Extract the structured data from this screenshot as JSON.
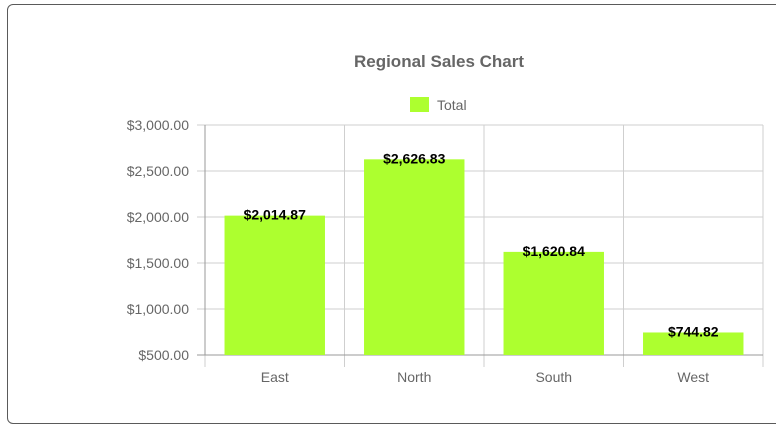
{
  "chart_data": {
    "type": "bar",
    "title": "Regional Sales Chart",
    "categories": [
      "East",
      "North",
      "South",
      "West"
    ],
    "series": [
      {
        "name": "Total",
        "values": [
          2014.87,
          2626.83,
          1620.84,
          744.82
        ]
      }
    ],
    "data_labels": [
      "$2,014.87",
      "$2,626.83",
      "$1,620.84",
      "$744.82"
    ],
    "y_ticks": [
      500,
      1000,
      1500,
      2000,
      2500,
      3000
    ],
    "y_tick_labels": [
      "$500.00",
      "$1,000.00",
      "$1,500.00",
      "$2,000.00",
      "$2,500.00",
      "$3,000.00"
    ],
    "ylim": [
      500,
      3000
    ],
    "grid": true,
    "legend_position": "top",
    "bar_color": "#adff2f"
  }
}
